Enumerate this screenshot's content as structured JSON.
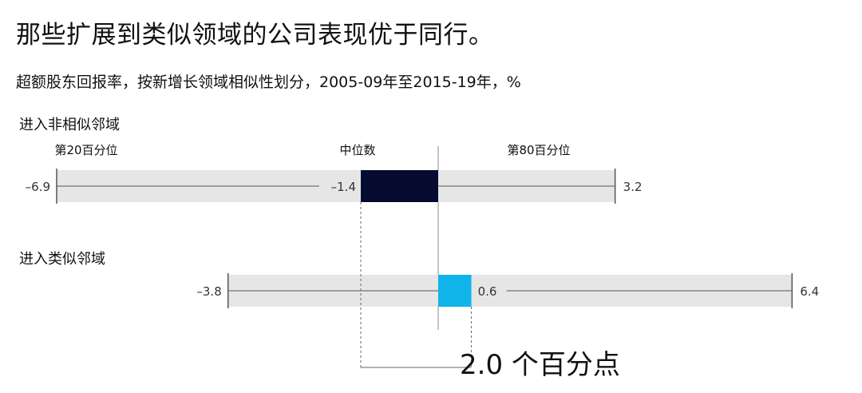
{
  "title": "那些扩展到类似领域的公司表现优于同行。",
  "subtitle": "超额股东回报率，按新增长领域相似性划分，2005-09年至2015-19年，%",
  "colors": {
    "track": "#e6e6e6",
    "line": "#555555",
    "median_dark": "#050a30",
    "median_light": "#10b4ea",
    "text": "#111111",
    "muted": "#333333"
  },
  "chart_data": {
    "type": "bar",
    "column_labels": [
      "第20百分位",
      "中位数",
      "第80百分位"
    ],
    "series": [
      {
        "name": "进入非相似邻域",
        "p20": -6.9,
        "median": -1.4,
        "p80": 3.2,
        "p20_label": "–6.9",
        "median_label": "–1.4",
        "p80_label": "3.2"
      },
      {
        "name": "进入类似邻域",
        "p20": -3.8,
        "median": 0.6,
        "p80": 6.4,
        "p20_label": "–3.8",
        "median_label": "0.6",
        "p80_label": "6.4"
      }
    ],
    "difference_label": "2.0 个百分点",
    "xlim": [
      -6.9,
      6.4
    ]
  }
}
